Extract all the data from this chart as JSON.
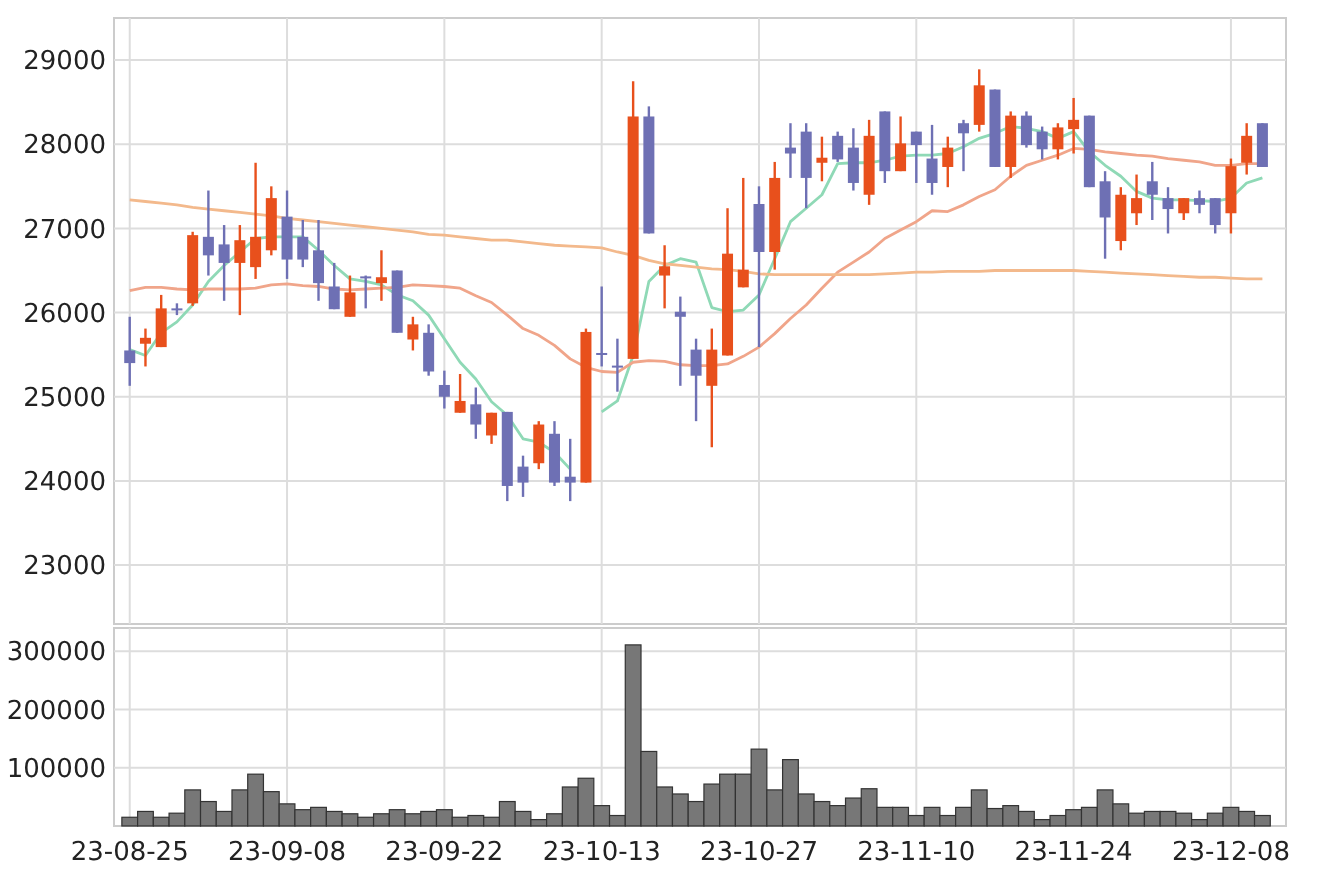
{
  "chart_data": [
    {
      "type": "candlestick",
      "categories": [
        null,
        null,
        null,
        null,
        null,
        null,
        null,
        null,
        null,
        null,
        null,
        null,
        null,
        null,
        null,
        null,
        null,
        null,
        null,
        null,
        null,
        null,
        null,
        null,
        null,
        null,
        null,
        null,
        null,
        null,
        null,
        null,
        null,
        null,
        null,
        null,
        null,
        null,
        null,
        null,
        null,
        null,
        null,
        null,
        null,
        null,
        null,
        null,
        null,
        null,
        null,
        null,
        null,
        null,
        null,
        null,
        null,
        null,
        null,
        null,
        null,
        null,
        null,
        null,
        null,
        null,
        null,
        null,
        null,
        null,
        null,
        null,
        null
      ],
      "ohlc": [
        [
          25550,
          25950,
          25130,
          25400
        ],
        [
          25630,
          25810,
          25360,
          25700
        ],
        [
          25590,
          26210,
          25590,
          26050
        ],
        [
          26050,
          26110,
          25970,
          26030
        ],
        [
          26110,
          26960,
          26080,
          26920
        ],
        [
          26900,
          27450,
          26440,
          26680
        ],
        [
          26810,
          27040,
          26140,
          26590
        ],
        [
          26590,
          27040,
          25970,
          26860
        ],
        [
          26540,
          27780,
          26400,
          26900
        ],
        [
          26740,
          27500,
          26680,
          27360
        ],
        [
          27140,
          27450,
          26400,
          26630
        ],
        [
          26900,
          27100,
          26540,
          26630
        ],
        [
          26740,
          27100,
          26140,
          26350
        ],
        [
          26310,
          26590,
          26040,
          26040
        ],
        [
          25950,
          26440,
          25950,
          26240
        ],
        [
          26430,
          26440,
          26050,
          26410
        ],
        [
          26350,
          26740,
          26140,
          26420
        ],
        [
          26500,
          26500,
          25760,
          25760
        ],
        [
          25680,
          25950,
          25550,
          25860
        ],
        [
          25760,
          25860,
          25250,
          25300
        ],
        [
          25140,
          25310,
          24860,
          25000
        ],
        [
          24810,
          25270,
          24810,
          24950
        ],
        [
          24910,
          25110,
          24500,
          24670
        ],
        [
          24540,
          24810,
          24440,
          24810
        ],
        [
          24820,
          24820,
          23760,
          23940
        ],
        [
          24170,
          24300,
          23810,
          23980
        ],
        [
          24210,
          24710,
          24140,
          24670
        ],
        [
          24560,
          24710,
          23940,
          23980
        ],
        [
          24050,
          24500,
          23760,
          23980
        ],
        [
          23980,
          25810,
          23980,
          25770
        ],
        [
          25520,
          26310,
          25360,
          25500
        ],
        [
          25370,
          25690,
          25060,
          25350
        ],
        [
          25450,
          28750,
          25450,
          28330
        ],
        [
          28330,
          28450,
          26940,
          26940
        ],
        [
          26440,
          26800,
          26050,
          26550
        ],
        [
          26010,
          26190,
          25130,
          25950
        ],
        [
          25560,
          25690,
          24710,
          25250
        ],
        [
          25130,
          25810,
          24400,
          25560
        ],
        [
          25490,
          27240,
          25490,
          26700
        ],
        [
          26300,
          27600,
          26300,
          26510
        ],
        [
          27290,
          27500,
          25590,
          26720
        ],
        [
          26720,
          27790,
          26510,
          27600
        ],
        [
          27960,
          28250,
          27600,
          27890
        ],
        [
          28150,
          28250,
          27240,
          27600
        ],
        [
          27780,
          28090,
          27560,
          27840
        ],
        [
          28100,
          28150,
          27790,
          27820
        ],
        [
          27960,
          28190,
          27450,
          27540
        ],
        [
          27400,
          28290,
          27280,
          28100
        ],
        [
          28390,
          28390,
          27540,
          27680
        ],
        [
          27680,
          28330,
          27680,
          28010
        ],
        [
          28150,
          28150,
          27540,
          27990
        ],
        [
          27830,
          28230,
          27400,
          27540
        ],
        [
          27730,
          28090,
          27490,
          27960
        ],
        [
          28250,
          28290,
          27680,
          28130
        ],
        [
          28230,
          28890,
          28150,
          28700
        ],
        [
          28650,
          28650,
          27730,
          27730
        ],
        [
          27730,
          28390,
          27600,
          28340
        ],
        [
          28340,
          28390,
          27960,
          27990
        ],
        [
          28150,
          28210,
          27820,
          27940
        ],
        [
          27940,
          28250,
          27820,
          28200
        ],
        [
          28180,
          28550,
          27890,
          28290
        ],
        [
          28340,
          28340,
          27490,
          27490
        ],
        [
          27560,
          27680,
          26640,
          27130
        ],
        [
          26850,
          27490,
          26740,
          27400
        ],
        [
          27180,
          27640,
          27040,
          27360
        ],
        [
          27560,
          27790,
          27100,
          27400
        ],
        [
          27360,
          27490,
          26940,
          27230
        ],
        [
          27180,
          27360,
          27100,
          27360
        ],
        [
          27360,
          27450,
          27180,
          27280
        ],
        [
          27360,
          27360,
          26940,
          27040
        ],
        [
          27180,
          27830,
          26940,
          27740
        ],
        [
          27780,
          28250,
          27640,
          28100
        ],
        [
          28250,
          28250,
          27730,
          27730
        ]
      ],
      "colors": [
        "#6e70b4",
        "#e8501c",
        "#e8501c",
        "#6e70b4",
        "#e8501c",
        "#6e70b4",
        "#6e70b4",
        "#e8501c",
        "#e8501c",
        "#e8501c",
        "#6e70b4",
        "#6e70b4",
        "#6e70b4",
        "#6e70b4",
        "#e8501c",
        "#6e70b4",
        "#e8501c",
        "#6e70b4",
        "#e8501c",
        "#6e70b4",
        "#6e70b4",
        "#e8501c",
        "#6e70b4",
        "#e8501c",
        "#6e70b4",
        "#6e70b4",
        "#e8501c",
        "#6e70b4",
        "#6e70b4",
        "#e8501c",
        "#6e70b4",
        "#6e70b4",
        "#e8501c",
        "#6e70b4",
        "#e8501c",
        "#6e70b4",
        "#6e70b4",
        "#e8501c",
        "#e8501c",
        "#e8501c",
        "#6e70b4",
        "#e8501c",
        "#6e70b4",
        "#6e70b4",
        "#e8501c",
        "#6e70b4",
        "#6e70b4",
        "#e8501c",
        "#6e70b4",
        "#e8501c",
        "#6e70b4",
        "#6e70b4",
        "#e8501c",
        "#6e70b4",
        "#e8501c",
        "#6e70b4",
        "#e8501c",
        "#6e70b4",
        "#6e70b4",
        "#e8501c",
        "#e8501c",
        "#6e70b4",
        "#6e70b4",
        "#e8501c",
        "#e8501c",
        "#6e70b4",
        "#6e70b4",
        "#e8501c",
        "#6e70b4",
        "#6e70b4",
        "#e8501c",
        "#e8501c",
        "#6e70b4"
      ],
      "series": [
        {
          "type": "line",
          "color": "#8fd9b6",
          "values": [
            25560,
            25490,
            25760,
            25890,
            26090,
            26370,
            26560,
            26720,
            26880,
            26900,
            26900,
            26900,
            26740,
            26560,
            26400,
            26370,
            26330,
            26210,
            26140,
            25970,
            25690,
            25410,
            25210,
            24940,
            24780,
            24500,
            24460,
            24340,
            24140,
            null,
            24820,
            24950,
            25490,
            26370,
            26560,
            26640,
            26600,
            26060,
            26010,
            26030,
            26210,
            26640,
            27080,
            27240,
            27400,
            27770,
            27780,
            27780,
            27810,
            27860,
            27870,
            27870,
            27890,
            27970,
            28070,
            28130,
            28210,
            28190,
            28150,
            28070,
            28150,
            27910,
            27750,
            27620,
            27440,
            27360,
            27340,
            27340,
            27330,
            27320,
            27360,
            27540,
            27600
          ]
        },
        {
          "type": "line",
          "color": "#f0a58a",
          "values": [
            26260,
            26300,
            26300,
            26280,
            26270,
            26280,
            26280,
            26280,
            26290,
            26330,
            26340,
            26320,
            26310,
            26280,
            26270,
            26280,
            26290,
            26300,
            26330,
            26320,
            26310,
            26290,
            26200,
            26120,
            25970,
            25810,
            25730,
            25610,
            25450,
            25350,
            25300,
            25290,
            25410,
            25430,
            25420,
            25380,
            25370,
            25370,
            25390,
            25480,
            25590,
            25750,
            25930,
            26090,
            26290,
            26480,
            26600,
            26720,
            26880,
            26980,
            27080,
            27210,
            27200,
            27280,
            27380,
            27460,
            27620,
            27750,
            27810,
            27870,
            27950,
            27940,
            27910,
            27890,
            27870,
            27860,
            27830,
            27810,
            27790,
            27750,
            27750,
            27770,
            27770
          ]
        },
        {
          "type": "line",
          "color": "#f3b98c",
          "values": [
            27340,
            27320,
            27300,
            27280,
            27250,
            27230,
            27210,
            27190,
            27170,
            27150,
            27120,
            27100,
            27080,
            27060,
            27040,
            27020,
            27000,
            26980,
            26960,
            26930,
            26920,
            26900,
            26880,
            26860,
            26860,
            26840,
            26820,
            26800,
            26790,
            26780,
            26770,
            26720,
            26680,
            26620,
            26580,
            26560,
            26540,
            26520,
            26510,
            26490,
            26460,
            26450,
            26450,
            26450,
            26450,
            26450,
            26450,
            26450,
            26460,
            26470,
            26480,
            26480,
            26490,
            26490,
            26490,
            26500,
            26500,
            26500,
            26500,
            26500,
            26500,
            26490,
            26480,
            26470,
            26460,
            26450,
            26440,
            26430,
            26420,
            26420,
            26410,
            26400,
            26400
          ]
        }
      ],
      "ylim": [
        22300,
        29500
      ],
      "yticks": [
        23000,
        24000,
        25000,
        26000,
        27000,
        28000,
        29000
      ],
      "grid": true
    },
    {
      "type": "bar",
      "categories": [
        "23-08-25",
        null,
        null,
        null,
        null,
        null,
        null,
        null,
        null,
        null,
        "23-09-08",
        null,
        null,
        null,
        null,
        null,
        null,
        null,
        null,
        null,
        "23-09-22",
        null,
        null,
        null,
        null,
        null,
        null,
        null,
        null,
        null,
        "23-10-13",
        null,
        null,
        null,
        null,
        null,
        null,
        null,
        null,
        null,
        "23-10-27",
        null,
        null,
        null,
        null,
        null,
        null,
        null,
        null,
        null,
        "23-11-10",
        null,
        null,
        null,
        null,
        null,
        null,
        null,
        null,
        null,
        "23-11-24",
        null,
        null,
        null,
        null,
        null,
        null,
        null,
        null,
        null,
        "23-12-08",
        null,
        null
      ],
      "values": [
        15000,
        25000,
        15000,
        22000,
        62000,
        42000,
        25000,
        62000,
        89000,
        59000,
        38000,
        28000,
        32000,
        25000,
        21000,
        15000,
        21000,
        28000,
        21000,
        25000,
        28000,
        15000,
        18000,
        15000,
        42000,
        25000,
        11000,
        21000,
        67000,
        82000,
        35000,
        18000,
        311000,
        128000,
        67000,
        55000,
        42000,
        72000,
        89000,
        89000,
        132000,
        62000,
        114000,
        55000,
        42000,
        35000,
        48000,
        64000,
        32000,
        32000,
        18000,
        32000,
        18000,
        32000,
        62000,
        30000,
        35000,
        25000,
        11000,
        18000,
        28000,
        32000,
        62000,
        38000,
        22000,
        25000,
        25000,
        22000,
        11000,
        22000,
        32000,
        25000,
        18000
      ],
      "color": "#777777",
      "ylim": [
        0,
        340000
      ],
      "yticks": [
        100000,
        200000,
        300000
      ],
      "grid": true
    }
  ]
}
